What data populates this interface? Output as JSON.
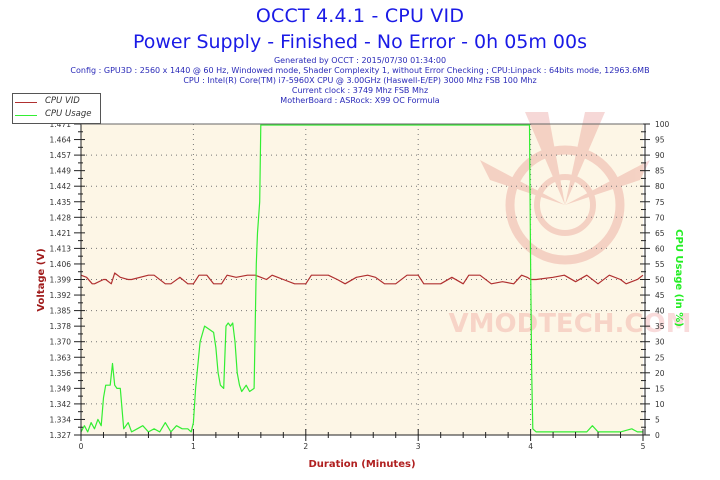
{
  "header": {
    "title": "OCCT 4.4.1 - CPU VID",
    "subtitle": "Power Supply - Finished - No Error - 0h 05m 00s",
    "info_lines": [
      "Generated by OCCT : 2015/07/30 01:34:00",
      "Config : GPU3D : 2560 x 1440 @ 60 Hz, Windowed mode, Shader Complexity 1, without Error Checking ; CPU:Linpack : 64bits mode, 12963.6MB",
      "CPU : Intel(R) Core(TM) i7-5960X CPU @ 3.00GHz (Haswell-E/EP) 3000 Mhz FSB 100 Mhz",
      "Current clock : 3749 Mhz FSB  Mhz",
      "MotherBoard : ASRock: X99 OC Formula"
    ]
  },
  "legend": {
    "items": [
      {
        "label": "CPU VID",
        "color": "#b03030"
      },
      {
        "label": "CPU Usage",
        "color": "#33ee33"
      }
    ]
  },
  "watermark": "VMODTECH.COM",
  "colors": {
    "plot_bg": "#fdf6e6",
    "vid": "#b03030",
    "usage": "#33ee33",
    "left_axis_label": "#a01c1c",
    "right_axis_label": "#22ee22",
    "x_axis_label": "#b02020"
  },
  "chart_data": {
    "type": "line",
    "title": "OCCT 4.4.1 - CPU VID",
    "xlabel": "Duration (Minutes)",
    "ylabel": "Voltage (V)",
    "y2label": "CPU Usage (in %)",
    "xlim": [
      0,
      5
    ],
    "ylim": [
      1.327,
      1.471
    ],
    "y2lim": [
      0,
      100
    ],
    "x_ticks": [
      "0",
      "1",
      "2",
      "3",
      "4",
      "5"
    ],
    "y_ticks": [
      "1.327",
      "1.334",
      "1.342",
      "1.349",
      "1.356",
      "1.363",
      "1.370",
      "1.378",
      "1.385",
      "1.392",
      "1.399",
      "1.406",
      "1.413",
      "1.421",
      "1.428",
      "1.435",
      "1.442",
      "1.449",
      "1.457",
      "1.464",
      "1.471"
    ],
    "y2_ticks": [
      "0",
      "5",
      "10",
      "15",
      "20",
      "25",
      "30",
      "35",
      "40",
      "45",
      "50",
      "55",
      "60",
      "65",
      "70",
      "75",
      "80",
      "85",
      "90",
      "95",
      "100"
    ],
    "grid": true,
    "legend_position": "top-left",
    "series": [
      {
        "name": "CPU VID",
        "axis": "left",
        "x": [
          0,
          0.05,
          0.1,
          0.12,
          0.2,
          0.22,
          0.27,
          0.3,
          0.35,
          0.42,
          0.45,
          0.6,
          0.65,
          0.75,
          0.8,
          0.88,
          0.95,
          1.0,
          1.05,
          1.12,
          1.18,
          1.25,
          1.3,
          1.38,
          1.48,
          1.55,
          1.6,
          1.65,
          1.7,
          1.75,
          1.8,
          1.9,
          2.0,
          2.05,
          2.2,
          2.28,
          2.35,
          2.45,
          2.55,
          2.62,
          2.7,
          2.8,
          2.9,
          3.0,
          3.05,
          3.2,
          3.3,
          3.4,
          3.45,
          3.55,
          3.65,
          3.75,
          3.85,
          3.92,
          3.97,
          4.0,
          4.05,
          4.2,
          4.3,
          4.4,
          4.5,
          4.6,
          4.7,
          4.8,
          4.85,
          4.95,
          5.0
        ],
        "values": [
          1.401,
          1.4,
          1.397,
          1.397,
          1.399,
          1.399,
          1.397,
          1.402,
          1.4,
          1.399,
          1.399,
          1.401,
          1.401,
          1.397,
          1.397,
          1.4,
          1.397,
          1.397,
          1.401,
          1.401,
          1.397,
          1.397,
          1.401,
          1.4,
          1.401,
          1.401,
          1.4,
          1.399,
          1.401,
          1.4,
          1.399,
          1.397,
          1.397,
          1.401,
          1.401,
          1.399,
          1.397,
          1.4,
          1.401,
          1.4,
          1.397,
          1.397,
          1.401,
          1.401,
          1.397,
          1.397,
          1.4,
          1.397,
          1.401,
          1.401,
          1.397,
          1.398,
          1.397,
          1.401,
          1.4,
          1.399,
          1.399,
          1.4,
          1.401,
          1.398,
          1.401,
          1.397,
          1.401,
          1.399,
          1.397,
          1.399,
          1.401
        ]
      },
      {
        "name": "CPU Usage",
        "axis": "right",
        "x": [
          0,
          0.03,
          0.06,
          0.09,
          0.12,
          0.15,
          0.18,
          0.2,
          0.22,
          0.26,
          0.28,
          0.3,
          0.32,
          0.35,
          0.38,
          0.42,
          0.45,
          0.5,
          0.55,
          0.6,
          0.65,
          0.7,
          0.75,
          0.8,
          0.85,
          0.9,
          0.95,
          0.98,
          1.0,
          1.02,
          1.06,
          1.1,
          1.14,
          1.18,
          1.2,
          1.22,
          1.24,
          1.27,
          1.29,
          1.31,
          1.33,
          1.35,
          1.37,
          1.39,
          1.41,
          1.43,
          1.45,
          1.47,
          1.5,
          1.54,
          1.56,
          1.57,
          1.58,
          1.59,
          1.6,
          1.7,
          1.8,
          2.0,
          2.5,
          3.0,
          3.5,
          3.99,
          4.0,
          4.01,
          4.02,
          4.05,
          4.2,
          4.4,
          4.5,
          4.55,
          4.6,
          4.8,
          4.9,
          4.95,
          5.0
        ],
        "values": [
          1,
          3,
          1,
          4,
          2,
          5,
          3,
          12,
          16,
          16,
          23,
          16,
          15,
          15,
          2,
          4,
          1,
          2,
          3,
          1,
          2,
          1,
          4,
          1,
          3,
          2,
          2,
          1,
          4,
          15,
          30,
          35,
          34,
          33,
          28,
          20,
          16,
          15,
          35,
          36,
          35,
          36,
          30,
          20,
          16,
          14,
          15,
          16,
          14,
          15,
          55,
          65,
          70,
          75,
          100,
          100,
          100,
          100,
          100,
          100,
          100,
          100,
          55,
          20,
          2,
          1,
          1,
          1,
          1,
          3,
          1,
          1,
          2,
          1,
          1
        ]
      }
    ]
  }
}
